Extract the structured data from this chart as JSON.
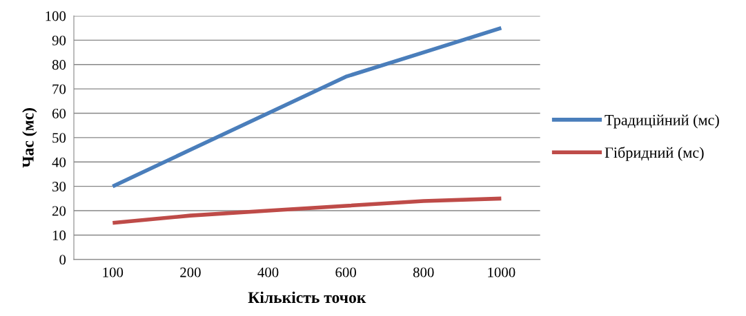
{
  "chart_data": {
    "type": "line",
    "xlabel": "Кількість точок",
    "ylabel": "Час (мс)",
    "categories": [
      "100",
      "200",
      "400",
      "600",
      "800",
      "1000"
    ],
    "series": [
      {
        "name": "Традиційний (мс)",
        "color": "#4a7ebb",
        "values": [
          30,
          45,
          60,
          75,
          85,
          95
        ]
      },
      {
        "name": "Гібридний (мс)",
        "color": "#be4b48",
        "values": [
          15,
          18,
          20,
          22,
          24,
          25
        ]
      }
    ],
    "ylim": [
      0,
      100
    ],
    "yticks": [
      0,
      10,
      20,
      30,
      40,
      50,
      60,
      70,
      80,
      90,
      100
    ],
    "grid": "y",
    "legend": "right",
    "marker": "none",
    "line_style": "solid"
  }
}
